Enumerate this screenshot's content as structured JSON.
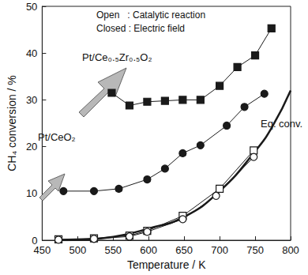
{
  "chart_data": {
    "type": "line",
    "x_label": "Temperature / K",
    "y_label": "CH₄ conversion / %",
    "xlim": [
      450,
      800
    ],
    "xticks": [
      450,
      500,
      550,
      600,
      650,
      700,
      750,
      800
    ],
    "ylim": [
      0,
      50
    ],
    "yticks": [
      0,
      10,
      20,
      30,
      40,
      50
    ],
    "grid": false,
    "notes": [
      "Open   : Catalytic reaction",
      "Closed : Electric field"
    ],
    "annotations": [
      "Pt/Ce₀.₅Zr₀.₅O₂",
      "Pt/CeO₂",
      "Eq. conv."
    ],
    "series": [
      {
        "color": "#1a1a1a",
        "marker": "square",
        "line_style": "solid",
        "x": [
          548,
          573,
          598,
          623,
          648,
          673,
          700,
          725,
          750,
          773
        ],
        "values": [
          31.5,
          28.8,
          29.6,
          29.8,
          30,
          30,
          33,
          37,
          39.5,
          45.3
        ]
      },
      {
        "color": "#1a1a1a",
        "marker": "circle",
        "line_style": "solid",
        "x": [
          480,
          523,
          558,
          598,
          623,
          648,
          673,
          710,
          735,
          763
        ],
        "values": [
          10.5,
          10.5,
          11,
          13,
          15.3,
          18.6,
          20.3,
          24.5,
          28.5,
          31.3
        ]
      },
      {
        "color": "#1a1a1a",
        "marker": "open_square",
        "line_style": "solid",
        "x": [
          473,
          523,
          573,
          598,
          648,
          700,
          748
        ],
        "values": [
          0.2,
          0.4,
          1,
          2,
          5.2,
          11,
          19.2
        ]
      },
      {
        "color": "#1a1a1a",
        "marker": "open_circle",
        "line_style": "solid",
        "x": [
          473,
          523,
          573,
          598,
          648,
          695,
          748
        ],
        "values": [
          0.1,
          0.3,
          0.8,
          1.8,
          4.5,
          9.5,
          17.8
        ]
      },
      {
        "color": "#1a1a1a",
        "marker": "none",
        "line_style": "thick",
        "x": [
          470,
          500,
          550,
          600,
          650,
          700,
          750,
          775,
          800
        ],
        "values": [
          0,
          0.1,
          0.7,
          2.5,
          5,
          10.5,
          19,
          24.5,
          32
        ]
      }
    ]
  }
}
